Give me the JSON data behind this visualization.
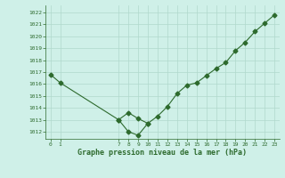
{
  "line1_x": [
    0,
    1,
    7,
    8,
    9,
    10,
    11,
    12,
    13,
    14,
    15,
    16,
    17,
    18,
    19,
    20,
    21,
    22,
    23
  ],
  "line1_y": [
    1016.8,
    1016.1,
    1013.0,
    1012.0,
    1011.7,
    1012.7,
    1013.3,
    1014.1,
    1015.2,
    1015.9,
    1016.1,
    1016.7,
    1017.3,
    1017.8,
    1018.8,
    1019.5,
    1020.4,
    1021.1,
    1021.8
  ],
  "line2_x": [
    7,
    8,
    9,
    10
  ],
  "line2_y": [
    1013.0,
    1013.6,
    1013.1,
    1012.7
  ],
  "line_color": "#2d6a2d",
  "bg_color": "#cff0e8",
  "grid_color": "#b0d8cc",
  "xlabel": "Graphe pression niveau de la mer (hPa)",
  "ylim": [
    1011.4,
    1022.6
  ],
  "xlim": [
    -0.5,
    23.5
  ],
  "yticks": [
    1012,
    1013,
    1014,
    1015,
    1016,
    1017,
    1018,
    1019,
    1020,
    1021,
    1022
  ],
  "xticks": [
    0,
    1,
    7,
    8,
    9,
    10,
    11,
    12,
    13,
    14,
    15,
    16,
    17,
    18,
    19,
    20,
    21,
    22,
    23
  ],
  "marker": "D",
  "markersize": 2.5,
  "linewidth": 0.8
}
